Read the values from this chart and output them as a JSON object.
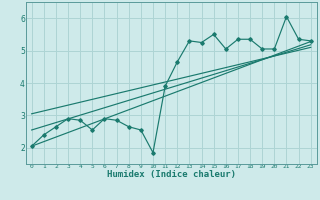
{
  "title": "",
  "xlabel": "Humidex (Indice chaleur)",
  "bg_color": "#ceeaea",
  "grid_color": "#add4d4",
  "line_color": "#1a7a6e",
  "xlim": [
    -0.5,
    23.5
  ],
  "ylim": [
    1.5,
    6.5
  ],
  "xticks": [
    0,
    1,
    2,
    3,
    4,
    5,
    6,
    7,
    8,
    9,
    10,
    11,
    12,
    13,
    14,
    15,
    16,
    17,
    18,
    19,
    20,
    21,
    22,
    23
  ],
  "yticks": [
    2,
    3,
    4,
    5,
    6
  ],
  "x": [
    0,
    1,
    2,
    3,
    4,
    5,
    6,
    7,
    8,
    9,
    10,
    11,
    12,
    13,
    14,
    15,
    16,
    17,
    18,
    19,
    20,
    21,
    22,
    23
  ],
  "line1": [
    2.05,
    2.4,
    2.65,
    2.9,
    2.85,
    2.55,
    2.9,
    2.85,
    2.65,
    2.55,
    1.85,
    3.9,
    4.65,
    5.3,
    5.25,
    5.5,
    5.05,
    5.35,
    5.35,
    5.05,
    5.05,
    6.05,
    5.35,
    5.3
  ],
  "straight_lines": [
    {
      "x0": 0,
      "y0": 2.05,
      "x1": 23,
      "y1": 5.28
    },
    {
      "x0": 0,
      "y0": 2.55,
      "x1": 23,
      "y1": 5.18
    },
    {
      "x0": 0,
      "y0": 3.05,
      "x1": 23,
      "y1": 5.1
    }
  ]
}
